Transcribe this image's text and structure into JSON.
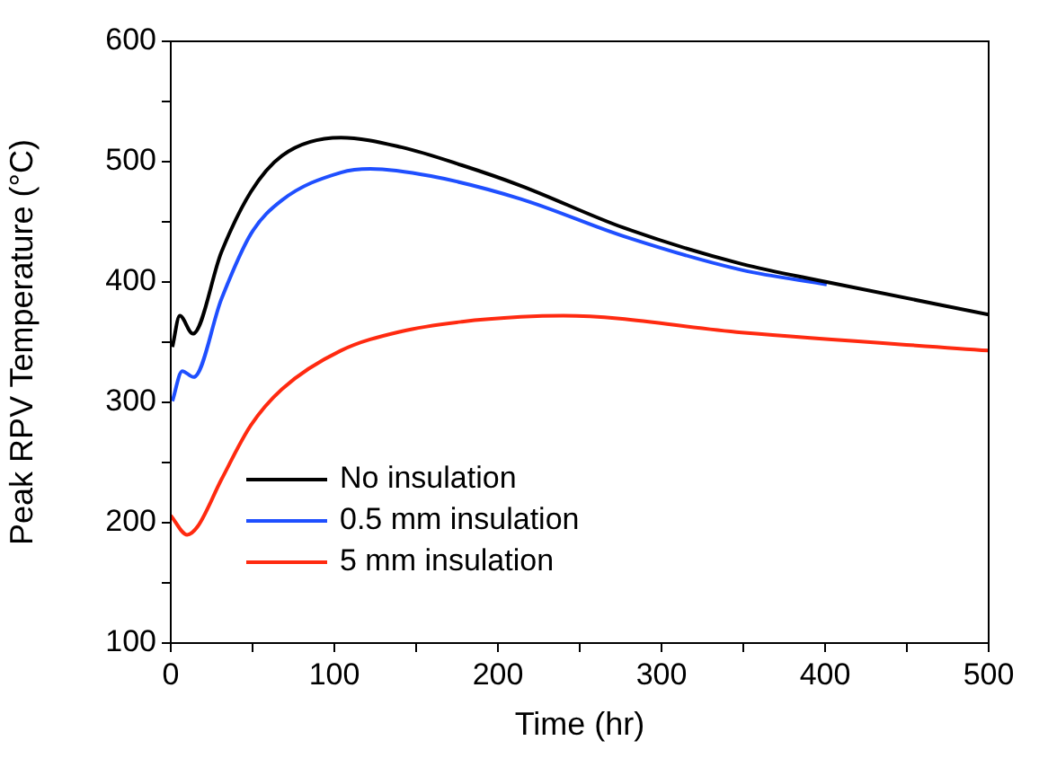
{
  "chart_data": {
    "type": "line",
    "xlabel": "Time (hr)",
    "ylabel": "Peak RPV Temperature (°C)",
    "xlim": [
      0,
      500
    ],
    "xticks": [
      0,
      {
        "value": 50,
        "label": null
      },
      100,
      {
        "value": 150,
        "label": null
      },
      200,
      {
        "value": 250,
        "label": null
      },
      300,
      {
        "value": 350,
        "label": null
      },
      400,
      {
        "value": 450,
        "label": null
      },
      500
    ],
    "ylim": [
      100,
      600
    ],
    "yticks": [
      100,
      {
        "value": 150,
        "label": null
      },
      200,
      {
        "value": 250,
        "label": null
      },
      300,
      {
        "value": 350,
        "label": null
      },
      400,
      {
        "value": 450,
        "label": null
      },
      500,
      {
        "value": 550,
        "label": null
      },
      600
    ],
    "grid": false,
    "legend": "bottom left",
    "marker": "none",
    "line_style": "solid",
    "series": [
      {
        "name": "No insulation",
        "color": "#000000",
        "x": [
          1,
          5.5,
          13.5,
          31,
          49,
          68,
          104,
          141,
          178,
          214,
          277,
          349,
          401,
          500
        ],
        "values": [
          346,
          372,
          357,
          425,
          475,
          505,
          520,
          512,
          497,
          480,
          445,
          415,
          400,
          373
        ]
      },
      {
        "name": "0.5 mm insulation",
        "color": "#1f4fff",
        "x": [
          1,
          7,
          14,
          31,
          49,
          68,
          104,
          122,
          159,
          214,
          277,
          349,
          401
        ],
        "values": [
          301,
          326,
          321,
          386,
          440,
          468,
          491,
          494,
          488,
          469,
          438,
          410,
          398
        ]
      },
      {
        "name": "5 mm insulation",
        "color": "#ff2a10",
        "x": [
          0,
          10,
          16.5,
          31,
          49,
          68,
          104,
          141,
          178,
          214,
          240,
          349,
          500
        ],
        "values": [
          206,
          190,
          197,
          236,
          281,
          311,
          343,
          359,
          367,
          371,
          372,
          358,
          343
        ]
      }
    ]
  }
}
